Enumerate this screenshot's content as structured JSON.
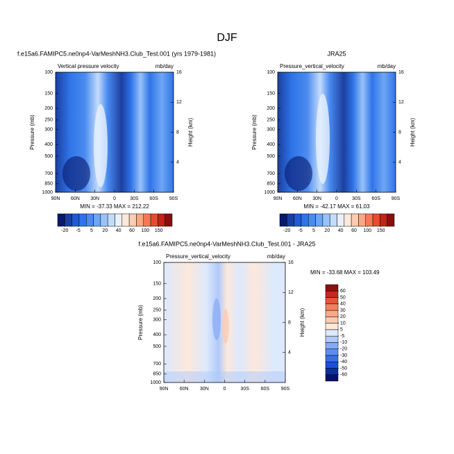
{
  "title": "DJF",
  "chart_data": [
    {
      "type": "contour",
      "title": "f.e15a6.FAMIPC5.ne0np4-VarMeshNH3.Club_Test.001 (yrs 1979-1981)",
      "left_label": "Vertical pressure velocity",
      "right_label": "mb/day",
      "ylabel": "Pressure (mb)",
      "y2label": "Height (km)",
      "xlim": [
        90,
        -90
      ],
      "xticks": [
        {
          "value": 90,
          "label": "90N"
        },
        {
          "value": 60,
          "label": "60N"
        },
        {
          "value": 30,
          "label": "30N"
        },
        0,
        {
          "value": -30,
          "label": "30S"
        },
        {
          "value": -60,
          "label": "60S"
        },
        {
          "value": -90,
          "label": "90S"
        }
      ],
      "ylim": [
        1000,
        100
      ],
      "log_y": true,
      "yticks": [
        100,
        150,
        200,
        250,
        300,
        400,
        500,
        700,
        850,
        1000
      ],
      "y2lim": [
        0,
        16
      ],
      "y2ticks": [
        4,
        8,
        12,
        16
      ],
      "annotation": "MIN = -37.33   MAX = 212.22",
      "colorbar": {
        "orientation": "horizontal",
        "ticks": [
          -20,
          -5,
          5,
          20,
          40,
          60,
          100,
          150
        ],
        "colors": [
          "#08186b",
          "#1b3fa0",
          "#1e5bd6",
          "#2f74e9",
          "#4a8bf0",
          "#6ea6f5",
          "#98c2f8",
          "#c4dcfb",
          "#e8f1fd",
          "#fde9dc",
          "#fbcdb0",
          "#f8a882",
          "#f27a55",
          "#e44d2e",
          "#c22417",
          "#8b0d0d"
        ]
      }
    },
    {
      "type": "contour",
      "title": "JRA25",
      "left_label": "Pressure_vertical_velocity",
      "right_label": "mb/day",
      "ylabel": "Pressure (mb)",
      "y2label": "Height (km)",
      "xlim": [
        90,
        -90
      ],
      "xticks": [
        {
          "value": 90,
          "label": "90N"
        },
        {
          "value": 60,
          "label": "60N"
        },
        {
          "value": 30,
          "label": "30N"
        },
        0,
        {
          "value": -30,
          "label": "30S"
        },
        {
          "value": -60,
          "label": "60S"
        },
        {
          "value": -90,
          "label": "90S"
        }
      ],
      "ylim": [
        1000,
        100
      ],
      "log_y": true,
      "yticks": [
        100,
        150,
        200,
        250,
        300,
        400,
        500,
        700,
        850,
        1000
      ],
      "y2lim": [
        0,
        16
      ],
      "y2ticks": [
        4,
        8,
        12,
        16
      ],
      "annotation": "MIN = -42.17   MAX = 61.03",
      "colorbar": {
        "orientation": "horizontal",
        "ticks": [
          -20,
          -5,
          5,
          20,
          40,
          60,
          100,
          150
        ],
        "colors": [
          "#08186b",
          "#1b3fa0",
          "#1e5bd6",
          "#2f74e9",
          "#4a8bf0",
          "#6ea6f5",
          "#98c2f8",
          "#c4dcfb",
          "#e8f1fd",
          "#fde9dc",
          "#fbcdb0",
          "#f8a882",
          "#f27a55",
          "#e44d2e",
          "#c22417",
          "#8b0d0d"
        ]
      }
    },
    {
      "type": "contour",
      "title": "f.e15a6.FAMIPC5.ne0np4-VarMeshNH3.Club_Test.001 - JRA25",
      "left_label": "Pressure_vertical_velocity",
      "right_label": "mb/day",
      "ylabel": "Pressure (mb)",
      "y2label": "Height (km)",
      "xlim": [
        90,
        -90
      ],
      "xticks": [
        {
          "value": 90,
          "label": "90N"
        },
        {
          "value": 60,
          "label": "60N"
        },
        {
          "value": 30,
          "label": "30N"
        },
        0,
        {
          "value": -30,
          "label": "30S"
        },
        {
          "value": -60,
          "label": "60S"
        },
        {
          "value": -90,
          "label": "90S"
        }
      ],
      "ylim": [
        1000,
        100
      ],
      "log_y": true,
      "yticks": [
        100,
        150,
        200,
        250,
        300,
        400,
        500,
        700,
        850,
        1000
      ],
      "y2lim": [
        0,
        16
      ],
      "y2ticks": [
        4,
        8,
        12,
        16
      ],
      "annotation": "MIN = -33.68   MAX = 103.49",
      "colorbar": {
        "orientation": "vertical",
        "ticks": [
          -60,
          -50,
          -40,
          -30,
          -20,
          -10,
          -5,
          5,
          10,
          20,
          30,
          40,
          50,
          60
        ],
        "colors": [
          "#08106b",
          "#0a2ea8",
          "#1b4fd8",
          "#3a6ee8",
          "#5b8cf0",
          "#86aaf5",
          "#b0c9f9",
          "#dde9fc",
          "#fde8dc",
          "#fbcbb1",
          "#f8a986",
          "#f2805e",
          "#e5553a",
          "#c8291e",
          "#8e0e0e"
        ]
      }
    }
  ]
}
